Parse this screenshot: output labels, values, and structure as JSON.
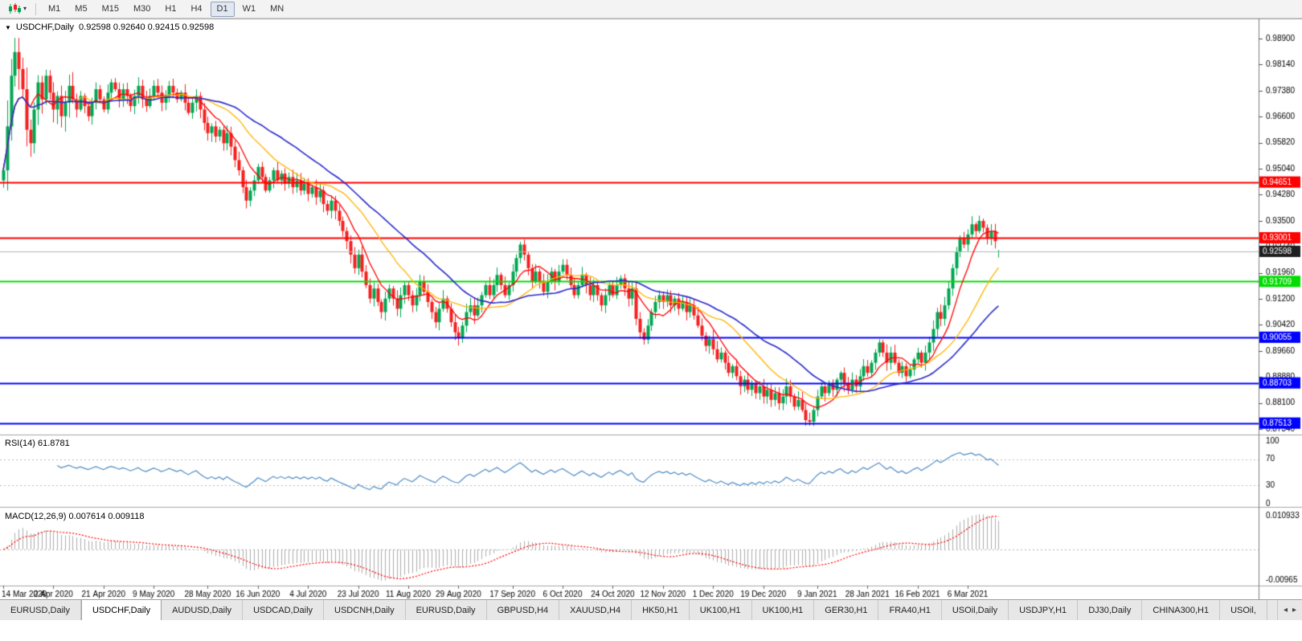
{
  "toolbar": {
    "caret": "▾",
    "timeframes": [
      {
        "label": "M1",
        "active": false
      },
      {
        "label": "M5",
        "active": false
      },
      {
        "label": "M15",
        "active": false
      },
      {
        "label": "M30",
        "active": false
      },
      {
        "label": "H1",
        "active": false
      },
      {
        "label": "H4",
        "active": false
      },
      {
        "label": "D1",
        "active": true
      },
      {
        "label": "W1",
        "active": false
      },
      {
        "label": "MN",
        "active": false
      }
    ]
  },
  "chart_header": {
    "arrow": "▼",
    "symbol": "USDCHF,Daily",
    "ohlc": "0.92598 0.92640 0.92415 0.92598"
  },
  "indicators": {
    "rsi": {
      "label": "RSI(14) 61.8781",
      "period": 14,
      "levels": [
        "100",
        "70",
        "30",
        "0"
      ],
      "level_values": [
        100,
        70,
        30,
        0
      ]
    },
    "macd": {
      "label": "MACD(12,26,9) 0.007614 0.009118",
      "fast": 12,
      "slow": 26,
      "signal": 9,
      "scale_top": "0.010933",
      "scale_bottom": "-0.00965"
    }
  },
  "chart_data": {
    "type": "candlestick",
    "symbol": "USDCHF",
    "timeframe": "Daily",
    "price_axis_ticks": [
      "0.98900",
      "0.98140",
      "0.97380",
      "0.96600",
      "0.95820",
      "0.95040",
      "0.94280",
      "0.93500",
      "0.92740",
      "0.91960",
      "0.91200",
      "0.90420",
      "0.89660",
      "0.88880",
      "0.88100",
      "0.87340"
    ],
    "axis_price_top": 0.989,
    "axis_price_bottom": 0.8734,
    "date_labels": [
      "14 Mar 2020",
      "2 Apr 2020",
      "21 Apr 2020",
      "9 May 2020",
      "28 May 2020",
      "16 Jun 2020",
      "4 Jul 2020",
      "23 Jul 2020",
      "11 Aug 2020",
      "29 Aug 2020",
      "17 Sep 2020",
      "6 Oct 2020",
      "24 Oct 2020",
      "12 Nov 2020",
      "1 Dec 2020",
      "19 Dec 2020",
      "9 Jan 2021",
      "28 Jan 2021",
      "16 Feb 2021",
      "6 Mar 2021"
    ],
    "date_label_indices": [
      0,
      13,
      26,
      39,
      53,
      66,
      79,
      92,
      105,
      118,
      132,
      145,
      158,
      171,
      184,
      197,
      211,
      224,
      237,
      250
    ],
    "first_open": 0.947,
    "closes": [
      0.95,
      0.963,
      0.978,
      0.985,
      0.98,
      0.974,
      0.962,
      0.958,
      0.968,
      0.976,
      0.971,
      0.978,
      0.973,
      0.968,
      0.972,
      0.966,
      0.97,
      0.975,
      0.971,
      0.968,
      0.972,
      0.969,
      0.966,
      0.97,
      0.974,
      0.971,
      0.968,
      0.973,
      0.976,
      0.974,
      0.971,
      0.974,
      0.972,
      0.969,
      0.972,
      0.975,
      0.971,
      0.969,
      0.972,
      0.975,
      0.973,
      0.97,
      0.972,
      0.975,
      0.973,
      0.971,
      0.973,
      0.97,
      0.967,
      0.97,
      0.972,
      0.968,
      0.964,
      0.961,
      0.963,
      0.96,
      0.962,
      0.958,
      0.961,
      0.957,
      0.953,
      0.95,
      0.945,
      0.941,
      0.944,
      0.947,
      0.951,
      0.948,
      0.944,
      0.947,
      0.95,
      0.947,
      0.949,
      0.946,
      0.948,
      0.945,
      0.947,
      0.944,
      0.946,
      0.943,
      0.945,
      0.942,
      0.944,
      0.94,
      0.938,
      0.941,
      0.938,
      0.935,
      0.932,
      0.929,
      0.925,
      0.921,
      0.925,
      0.92,
      0.916,
      0.912,
      0.915,
      0.911,
      0.908,
      0.912,
      0.915,
      0.912,
      0.909,
      0.913,
      0.916,
      0.913,
      0.91,
      0.913,
      0.917,
      0.914,
      0.911,
      0.908,
      0.905,
      0.909,
      0.912,
      0.909,
      0.905,
      0.902,
      0.9005,
      0.904,
      0.908,
      0.91,
      0.907,
      0.91,
      0.913,
      0.916,
      0.913,
      0.916,
      0.919,
      0.916,
      0.913,
      0.916,
      0.92,
      0.924,
      0.928,
      0.925,
      0.921,
      0.917,
      0.92,
      0.917,
      0.914,
      0.917,
      0.92,
      0.917,
      0.92,
      0.922,
      0.919,
      0.916,
      0.913,
      0.916,
      0.919,
      0.916,
      0.913,
      0.916,
      0.913,
      0.91,
      0.913,
      0.916,
      0.913,
      0.916,
      0.918,
      0.915,
      0.912,
      0.915,
      0.906,
      0.902,
      0.8998,
      0.904,
      0.908,
      0.911,
      0.913,
      0.911,
      0.913,
      0.91,
      0.912,
      0.909,
      0.911,
      0.908,
      0.91,
      0.907,
      0.904,
      0.901,
      0.898,
      0.9,
      0.897,
      0.894,
      0.896,
      0.893,
      0.89,
      0.892,
      0.889,
      0.886,
      0.888,
      0.885,
      0.887,
      0.884,
      0.886,
      0.883,
      0.885,
      0.882,
      0.884,
      0.881,
      0.883,
      0.886,
      0.883,
      0.88,
      0.882,
      0.879,
      0.876,
      0.8755,
      0.879,
      0.883,
      0.886,
      0.884,
      0.887,
      0.885,
      0.888,
      0.89,
      0.887,
      0.885,
      0.888,
      0.886,
      0.889,
      0.892,
      0.89,
      0.893,
      0.896,
      0.899,
      0.896,
      0.893,
      0.896,
      0.893,
      0.89,
      0.892,
      0.889,
      0.891,
      0.894,
      0.896,
      0.893,
      0.896,
      0.899,
      0.903,
      0.908,
      0.906,
      0.91,
      0.915,
      0.921,
      0.926,
      0.93,
      0.928,
      0.931,
      0.934,
      0.932,
      0.935,
      0.933,
      0.93,
      0.932,
      0.929,
      0.92598
    ],
    "last_candle": {
      "o": 0.92598,
      "h": 0.9264,
      "l": 0.92415,
      "c": 0.92598
    },
    "levels": [
      {
        "price": 0.94651,
        "label": "0.94651",
        "color": "#FF0000",
        "width": 2
      },
      {
        "price": 0.93001,
        "label": "0.93001",
        "color": "#FF0000",
        "width": 2
      },
      {
        "price": 0.92598,
        "label": "0.92598",
        "color": "#B5B5B5",
        "width": 1,
        "box": "#1F1F1F",
        "bid": true
      },
      {
        "price": 0.91709,
        "label": "0.91709",
        "color": "#00DD00",
        "width": 2
      },
      {
        "price": 0.90055,
        "label": "0.90055",
        "color": "#0000FF",
        "width": 2
      },
      {
        "price": 0.88703,
        "label": "0.88703",
        "color": "#0000FF",
        "width": 2
      },
      {
        "price": 0.87513,
        "label": "0.87513",
        "color": "#0000FF",
        "width": 2
      }
    ],
    "moving_averages": [
      {
        "period": 8,
        "color": "#FF0000"
      },
      {
        "period": 20,
        "color": "#FFB400"
      },
      {
        "period": 34,
        "color": "#2929CC"
      }
    ],
    "colors": {
      "up": "#00A651",
      "down": "#F52020",
      "rsi": "#4E8BC4",
      "macd_hist": "#ADADAD",
      "macd_signal": "#FF0000"
    }
  },
  "bottom_tabs": {
    "scroll_left": "◂",
    "scroll_right": "▸",
    "items": [
      {
        "label": "EURUSD,Daily",
        "active": false
      },
      {
        "label": "USDCHF,Daily",
        "active": true
      },
      {
        "label": "AUDUSD,Daily",
        "active": false
      },
      {
        "label": "USDCAD,Daily",
        "active": false
      },
      {
        "label": "USDCNH,Daily",
        "active": false
      },
      {
        "label": "EURUSD,Daily",
        "active": false
      },
      {
        "label": "GBPUSD,H4",
        "active": false
      },
      {
        "label": "XAUUSD,H4",
        "active": false
      },
      {
        "label": "HK50,H1",
        "active": false
      },
      {
        "label": "UK100,H1",
        "active": false
      },
      {
        "label": "UK100,H1",
        "active": false
      },
      {
        "label": "GER30,H1",
        "active": false
      },
      {
        "label": "FRA40,H1",
        "active": false
      },
      {
        "label": "USOil,Daily",
        "active": false
      },
      {
        "label": "USDJPY,H1",
        "active": false
      },
      {
        "label": "DJ30,Daily",
        "active": false
      },
      {
        "label": "CHINA300,H1",
        "active": false
      },
      {
        "label": "USOil,",
        "active": false
      }
    ]
  }
}
